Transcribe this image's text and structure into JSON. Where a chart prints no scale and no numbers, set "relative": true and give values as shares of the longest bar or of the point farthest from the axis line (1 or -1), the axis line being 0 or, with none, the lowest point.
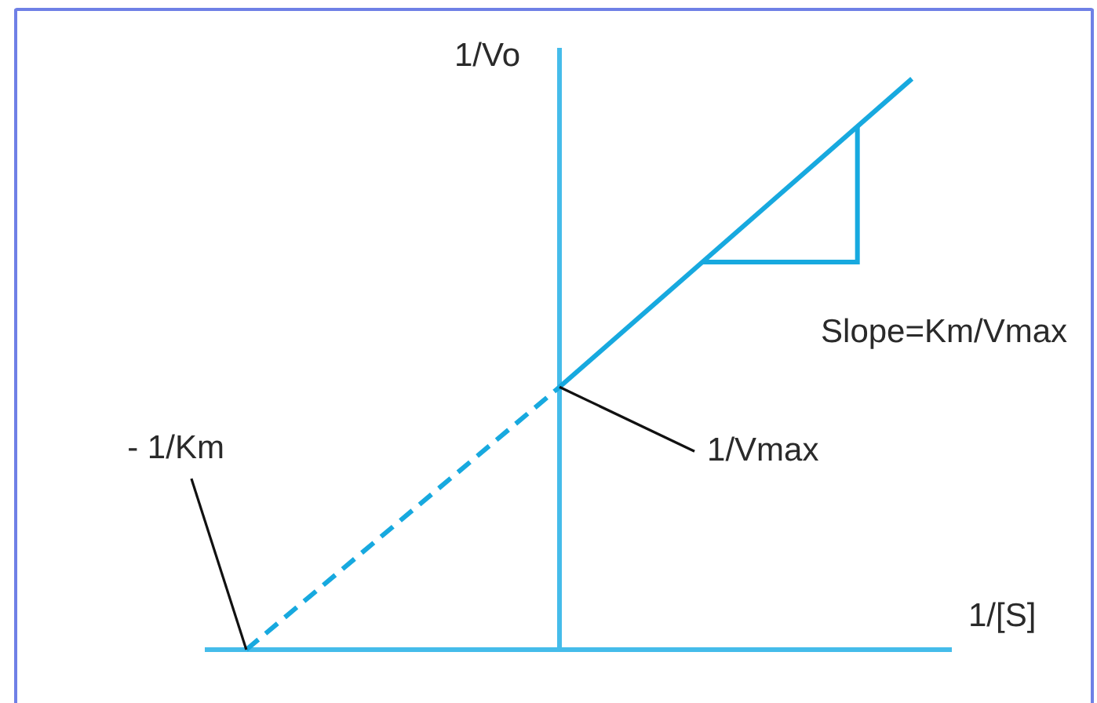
{
  "chart_data": {
    "type": "line",
    "relative": true,
    "xlabel": "1/[S]",
    "ylabel": "1/Vo",
    "categories": [
      null,
      null,
      null,
      null,
      null,
      null,
      null,
      null,
      null,
      null,
      null,
      null,
      null,
      null,
      null,
      null,
      null,
      null,
      null,
      null
    ],
    "series": [
      {
        "color": "#17a9df",
        "line_style": "dashed",
        "values": [
          null,
          0,
          null,
          null,
          null,
          null,
          null,
          null,
          null,
          0.46,
          null,
          null,
          null,
          null,
          null,
          null,
          null,
          null,
          null,
          null
        ]
      },
      {
        "color": "#17a9df",
        "line_style": "solid",
        "values": [
          null,
          null,
          null,
          null,
          null,
          null,
          null,
          null,
          null,
          0.46,
          null,
          null,
          null,
          null,
          null,
          null,
          null,
          null,
          1,
          null
        ]
      }
    ],
    "annotations": [
      "- 1/Km",
      "1/Vmax",
      "Slope=Km/Vmax"
    ],
    "marker": "none",
    "tick_labels": false
  }
}
